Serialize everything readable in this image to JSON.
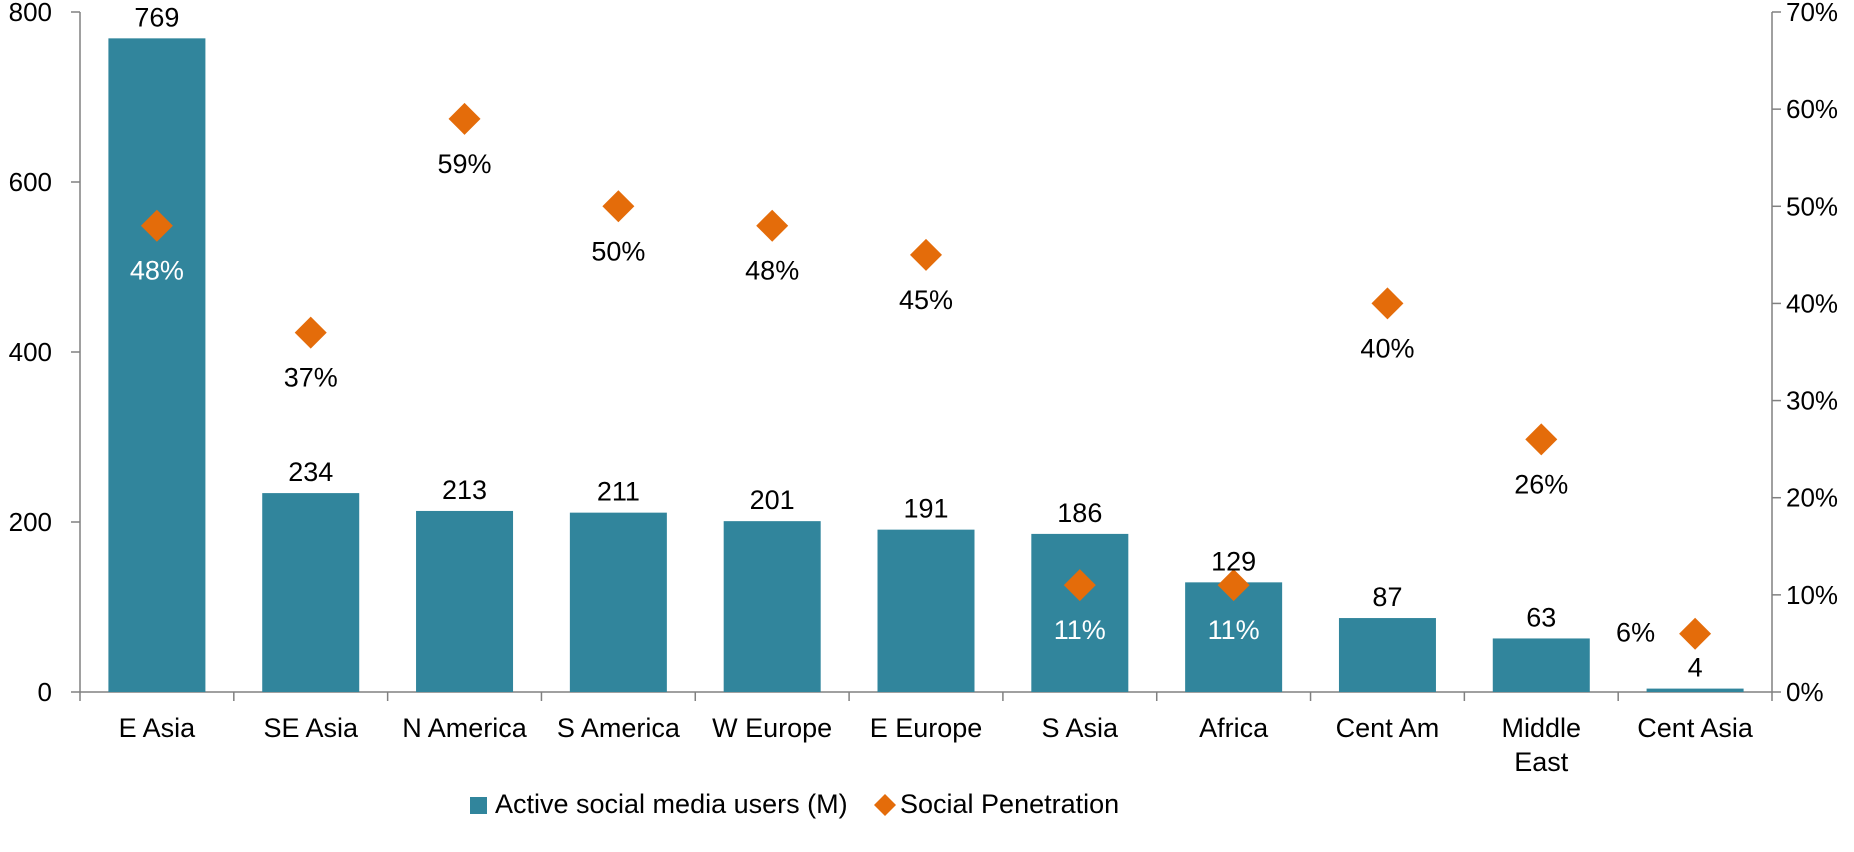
{
  "chart_data": {
    "type": "bar",
    "categories": [
      "E Asia",
      "SE Asia",
      "N America",
      "S America",
      "W Europe",
      "E Europe",
      "S Asia",
      "Africa",
      "Cent Am",
      "Middle East",
      "Cent Asia"
    ],
    "series": [
      {
        "name": "Active social media users (M)",
        "type": "bar",
        "axis": "left",
        "values": [
          769,
          234,
          213,
          211,
          201,
          191,
          186,
          129,
          87,
          63,
          4
        ],
        "labels": [
          "769",
          "234",
          "213",
          "211",
          "201",
          "191",
          "186",
          "129",
          "87",
          "63",
          "4"
        ]
      },
      {
        "name": "Social Penetration",
        "type": "scatter",
        "marker": "diamond",
        "axis": "right",
        "values": [
          48,
          37,
          59,
          50,
          48,
          45,
          11,
          11,
          40,
          26,
          6
        ],
        "labels": [
          "48%",
          "37%",
          "59%",
          "50%",
          "48%",
          "45%",
          "11%",
          "11%",
          "40%",
          "26%",
          "6%"
        ]
      }
    ],
    "y_left": {
      "min": 0,
      "max": 800,
      "ticks": [
        "0",
        "200",
        "400",
        "600",
        "800"
      ]
    },
    "y_right": {
      "min": 0,
      "max": 70,
      "ticks": [
        "0%",
        "10%",
        "20%",
        "30%",
        "40%",
        "50%",
        "60%",
        "70%"
      ]
    },
    "legend_position": "bottom",
    "colors": {
      "bar": "#31859c",
      "marker": "#e46c0a",
      "axis": "#808080"
    }
  }
}
